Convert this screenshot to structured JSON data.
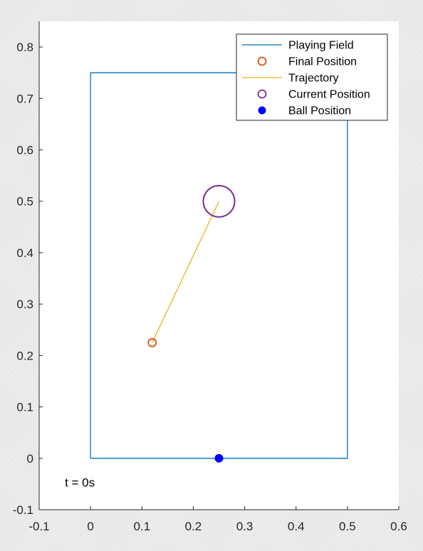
{
  "chart_data": {
    "type": "line",
    "title": "",
    "xlabel": "",
    "ylabel": "",
    "xlim": [
      -0.1,
      0.6
    ],
    "ylim": [
      -0.1,
      0.85
    ],
    "x_ticks": [
      -0.1,
      0,
      0.1,
      0.2,
      0.3,
      0.4,
      0.5,
      0.6
    ],
    "x_tick_labels": [
      "-0.1",
      "0",
      "0.1",
      "0.2",
      "0.3",
      "0.4",
      "0.5",
      "0.6"
    ],
    "y_ticks": [
      -0.1,
      0,
      0.1,
      0.2,
      0.3,
      0.4,
      0.5,
      0.6,
      0.7,
      0.8
    ],
    "y_tick_labels": [
      "-0.1",
      "0",
      "0.1",
      "0.2",
      "0.3",
      "0.4",
      "0.5",
      "0.6",
      "0.7",
      "0.8"
    ],
    "grid": false,
    "legend_position": "top-right",
    "series": [
      {
        "name": "Playing Field",
        "kind": "line",
        "color": "#0072BD",
        "x": [
          0,
          0.5,
          0.5,
          0,
          0
        ],
        "y": [
          0,
          0,
          0.75,
          0.75,
          0
        ]
      },
      {
        "name": "Final Position",
        "kind": "marker-open-circle",
        "color": "#D95319",
        "x": [
          0.12
        ],
        "y": [
          0.225
        ]
      },
      {
        "name": "Trajectory",
        "kind": "line",
        "color": "#EDB120",
        "x": [
          0.12,
          0.25
        ],
        "y": [
          0.225,
          0.5
        ]
      },
      {
        "name": "Current Position",
        "kind": "marker-open-circle-large",
        "color": "#7E2F8E",
        "x": [
          0.25
        ],
        "y": [
          0.5
        ]
      },
      {
        "name": "Ball Position",
        "kind": "marker-filled-circle",
        "color": "#0000FF",
        "x": [
          0.25
        ],
        "y": [
          0
        ]
      }
    ],
    "annotations": [
      {
        "text": "t = 0s",
        "x": -0.05,
        "y": -0.055
      }
    ]
  }
}
